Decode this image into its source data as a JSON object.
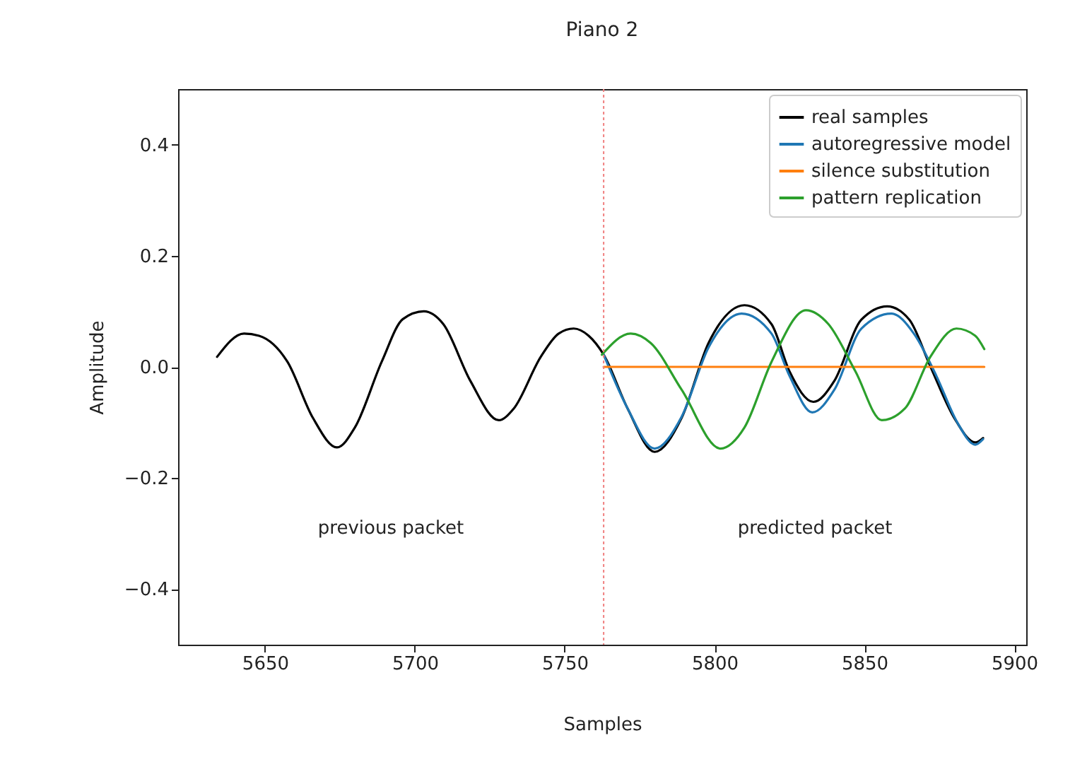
{
  "chart_data": {
    "type": "line",
    "title": "Piano 2",
    "xlabel": "Samples",
    "ylabel": "Amplitude",
    "xlim": [
      5621,
      5904
    ],
    "xticks": [
      5650,
      5700,
      5750,
      5800,
      5850,
      5900
    ],
    "ylim": [
      -0.5,
      0.5
    ],
    "yticks": [
      {
        "value": -0.4,
        "label": "−0.4"
      },
      {
        "value": -0.2,
        "label": "−0.2"
      },
      {
        "value": 0,
        "label": "0.0"
      },
      {
        "value": 0.2,
        "label": "0.2"
      },
      {
        "value": 0.4,
        "label": "0.4"
      }
    ],
    "grid": false,
    "legend": "top right",
    "marker": "none",
    "line_style": "solid",
    "series": [
      {
        "name": "real samples",
        "color": "#000000",
        "x": [
          5634,
          5643,
          5648,
          5657.5,
          5666,
          5674,
          5680,
          5689,
          5696,
          5703,
          5709.5,
          5718.5,
          5728,
          5733,
          5742,
          5748,
          5753,
          5758,
          5763,
          5771,
          5780,
          5789,
          5798,
          5810,
          5819,
          5825,
          5833,
          5840,
          5849,
          5857.6,
          5865,
          5872,
          5880,
          5887,
          5889.6
        ],
        "values": [
          0.018,
          0.06,
          0.056,
          0.009,
          -0.092,
          -0.145,
          -0.109,
          0.01,
          0.086,
          0.1,
          0.077,
          -0.025,
          -0.096,
          -0.075,
          0.018,
          0.06,
          0.069,
          0.056,
          0.022,
          -0.075,
          -0.153,
          -0.092,
          0.043,
          0.111,
          0.077,
          -0.008,
          -0.063,
          -0.025,
          0.085,
          0.109,
          0.085,
          0.001,
          -0.092,
          -0.136,
          -0.128
        ]
      },
      {
        "name": "autoregressive model",
        "color": "#1f77b4",
        "x": [
          5763,
          5771,
          5780,
          5789,
          5798,
          5809,
          5819,
          5825,
          5832.6,
          5840,
          5849,
          5859,
          5866.5,
          5874,
          5881,
          5887,
          5889.6
        ],
        "values": [
          0.022,
          -0.075,
          -0.147,
          -0.09,
          0.035,
          0.096,
          0.06,
          -0.016,
          -0.082,
          -0.041,
          0.069,
          0.096,
          0.06,
          -0.016,
          -0.1,
          -0.14,
          -0.13
        ]
      },
      {
        "name": "silence substitution",
        "color": "#ff7f0e",
        "x": [
          5763,
          5890
        ],
        "values": [
          0.0,
          0.0
        ]
      },
      {
        "name": "pattern replication",
        "color": "#2ca02c",
        "x": [
          5762.4,
          5772,
          5778.7,
          5789,
          5802,
          5810,
          5819,
          5830.5,
          5838,
          5847,
          5855.8,
          5863.5,
          5872,
          5880.7,
          5887,
          5890
        ],
        "values": [
          0.022,
          0.06,
          0.043,
          -0.041,
          -0.147,
          -0.109,
          0.009,
          0.102,
          0.077,
          -0.008,
          -0.096,
          -0.075,
          0.018,
          0.069,
          0.056,
          0.032
        ]
      }
    ],
    "ref_lines": [
      {
        "axis": "x",
        "value": 5763,
        "color": "#f08080",
        "line_style": "dotted"
      }
    ],
    "annotations": [
      "previous packet",
      "predicted packet"
    ]
  }
}
